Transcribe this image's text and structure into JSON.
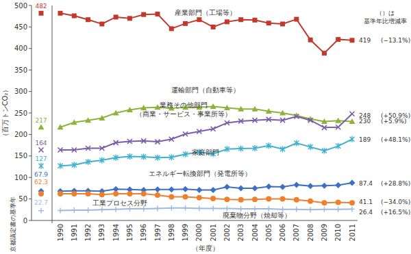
{
  "chart_data": {
    "type": "line",
    "y_label": "（百万トンCO₂）",
    "x_label": "（年度）",
    "annotation": [
      "（）は",
      "基準年比増減率"
    ],
    "categories": [
      "京都議定書の基準年",
      "1990",
      "1991",
      "1992",
      "1993",
      "1994",
      "1995",
      "1996",
      "1997",
      "1998",
      "1999",
      "2000",
      "2001",
      "2002",
      "2003",
      "2004",
      "2005",
      "2006",
      "2007",
      "2008",
      "2009",
      "2010",
      "2011"
    ],
    "ylim": [
      0,
      500
    ],
    "yticks": [
      0,
      50,
      100,
      150,
      200,
      250,
      300,
      350,
      400,
      450,
      500
    ],
    "grid": false,
    "series": [
      {
        "name": "産業部門（工場等）",
        "color": "#c0392b",
        "marker": "square",
        "change_label": "(−13.1%)",
        "values": [
          482,
          482,
          476,
          467,
          457,
          473,
          470,
          479,
          480,
          446,
          458,
          467,
          450,
          462,
          467,
          466,
          459,
          457,
          468,
          420,
          389,
          421,
          419
        ]
      },
      {
        "name": "運輸部門（自動車等）",
        "color": "#8db33a",
        "marker": "triangle",
        "change_label": "(+5.9%)",
        "values": [
          217,
          217,
          228,
          233,
          238,
          250,
          257,
          262,
          263,
          261,
          263,
          263,
          265,
          262,
          259,
          259,
          254,
          250,
          244,
          236,
          230,
          232,
          230
        ]
      },
      {
        "name": "業務その他部門（商業・サービス・事業所等）",
        "color": "#7b5ea7",
        "marker": "x",
        "change_label": "(+50.9%)",
        "values": [
          164,
          164,
          164,
          168,
          168,
          181,
          184,
          185,
          183,
          189,
          201,
          207,
          213,
          227,
          231,
          233,
          235,
          233,
          242,
          233,
          216,
          217,
          248
        ]
      },
      {
        "name": "家庭部門",
        "color": "#3fb0d0",
        "marker": "star",
        "change_label": "(+48.1%)",
        "values": [
          127,
          127,
          129,
          136,
          140,
          146,
          149,
          148,
          146,
          147,
          154,
          159,
          155,
          166,
          167,
          168,
          174,
          166,
          180,
          171,
          162,
          173,
          189
        ]
      },
      {
        "name": "エネルギー転換部門（発電所等）",
        "color": "#3d6fc4",
        "marker": "diamond",
        "change_label": "(+28.8%)",
        "values": [
          67.9,
          68,
          69,
          69,
          68,
          73,
          72,
          71,
          72,
          72,
          73,
          71,
          71,
          78,
          75,
          75,
          79,
          78,
          83,
          80,
          81,
          82,
          87.4
        ]
      },
      {
        "name": "工業プロセス分野",
        "color": "#ee7f2d",
        "marker": "circle",
        "change_label": "(−34.0%)",
        "values": [
          62.3,
          62,
          62,
          62,
          60,
          62,
          62,
          62,
          59,
          55,
          55,
          53,
          51,
          49,
          48,
          49,
          50,
          50,
          48,
          45,
          41,
          42,
          41.1
        ]
      },
      {
        "name": "廃棄物分野（焼却等）",
        "color": "#9dbbe0",
        "marker": "plus",
        "change_label": "(+16.5%)",
        "values": [
          22.7,
          23,
          24,
          24,
          25,
          26,
          27,
          27,
          28,
          29,
          29,
          28,
          28,
          28,
          27,
          27,
          27,
          26,
          26,
          25,
          26,
          26,
          26.4
        ]
      }
    ]
  }
}
